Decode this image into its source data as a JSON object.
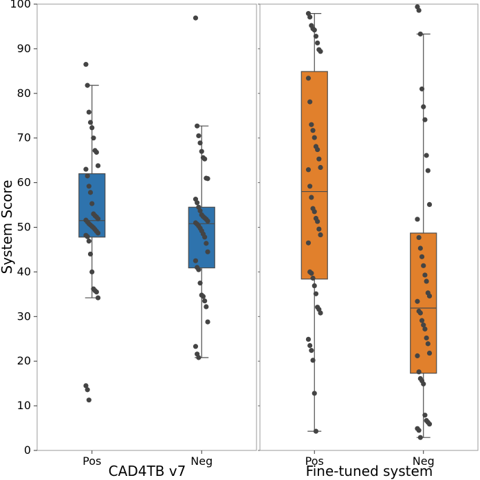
{
  "chart_data": {
    "type": "box",
    "ylabel": "System Score",
    "ylim": [
      0,
      100
    ],
    "yticks": [
      0,
      10,
      20,
      30,
      40,
      50,
      60,
      70,
      80,
      90,
      100
    ],
    "panels": [
      {
        "title": "CAD4TB v7",
        "color": "#2e73ad",
        "categories": [
          "Pos",
          "Neg"
        ],
        "boxes": [
          {
            "category": "Pos",
            "min": 34.2,
            "q1": 47.8,
            "median": 51.5,
            "q3": 62.0,
            "max": 81.8,
            "points": [
              86.5,
              81.8,
              75.8,
              73.5,
              72.3,
              70.0,
              67.2,
              66.8,
              63.8,
              63.0,
              61.5,
              59.2,
              57.8,
              55.3,
              53.0,
              52.6,
              52.3,
              51.9,
              51.6,
              51.2,
              50.8,
              50.5,
              50.2,
              49.9,
              49.5,
              49.1,
              48.7,
              48.2,
              47.9,
              46.9,
              44.0,
              40.0,
              36.2,
              35.8,
              35.5,
              34.2,
              14.5,
              13.6,
              11.3
            ]
          },
          {
            "category": "Neg",
            "min": 20.8,
            "q1": 40.9,
            "median": 50.8,
            "q3": 54.5,
            "max": 72.7,
            "points": [
              96.9,
              72.7,
              70.5,
              68.9,
              67.0,
              65.6,
              65.3,
              61.0,
              60.9,
              56.3,
              55.5,
              54.5,
              53.7,
              52.8,
              52.4,
              52.1,
              51.8,
              51.4,
              51.0,
              50.7,
              50.3,
              49.8,
              49.2,
              48.5,
              47.8,
              46.4,
              44.5,
              42.5,
              41.0,
              40.5,
              37.5,
              34.8,
              34.5,
              33.5,
              32.2,
              28.8,
              23.3,
              21.6,
              20.8
            ]
          }
        ]
      },
      {
        "title": "Fine-tuned system",
        "color": "#e1802c",
        "categories": [
          "Pos",
          "Neg"
        ],
        "boxes": [
          {
            "category": "Pos",
            "min": 4.3,
            "q1": 38.4,
            "median": 58.0,
            "q3": 84.9,
            "max": 97.9,
            "points": [
              97.9,
              97.1,
              95.2,
              94.5,
              94.2,
              92.8,
              91.3,
              89.8,
              89.4,
              83.4,
              78.1,
              73.0,
              71.7,
              70.1,
              68.1,
              67.4,
              65.3,
              63.4,
              62.9,
              59.2,
              56.7,
              54.2,
              53.5,
              52.0,
              51.3,
              49.6,
              48.3,
              46.5,
              40.0,
              39.7,
              38.6,
              36.9,
              35.1,
              32.1,
              31.6,
              30.8,
              24.9,
              23.5,
              22.4,
              20.2,
              12.8,
              4.3
            ]
          },
          {
            "category": "Neg",
            "min": 2.9,
            "q1": 17.3,
            "median": 31.9,
            "q3": 48.7,
            "max": 93.3,
            "points": [
              99.4,
              98.6,
              93.3,
              81.0,
              77.0,
              74.1,
              66.1,
              62.7,
              55.1,
              51.8,
              47.7,
              45.3,
              43.4,
              41.4,
              39.3,
              37.9,
              35.3,
              34.6,
              33.4,
              31.2,
              30.8,
              29.1,
              28.1,
              27.2,
              25.2,
              23.9,
              21.8,
              21.2,
              17.6,
              16.1,
              15.6,
              14.9,
              7.9,
              6.7,
              6.3,
              5.9,
              4.9,
              4.5,
              2.9
            ]
          }
        ]
      }
    ]
  }
}
